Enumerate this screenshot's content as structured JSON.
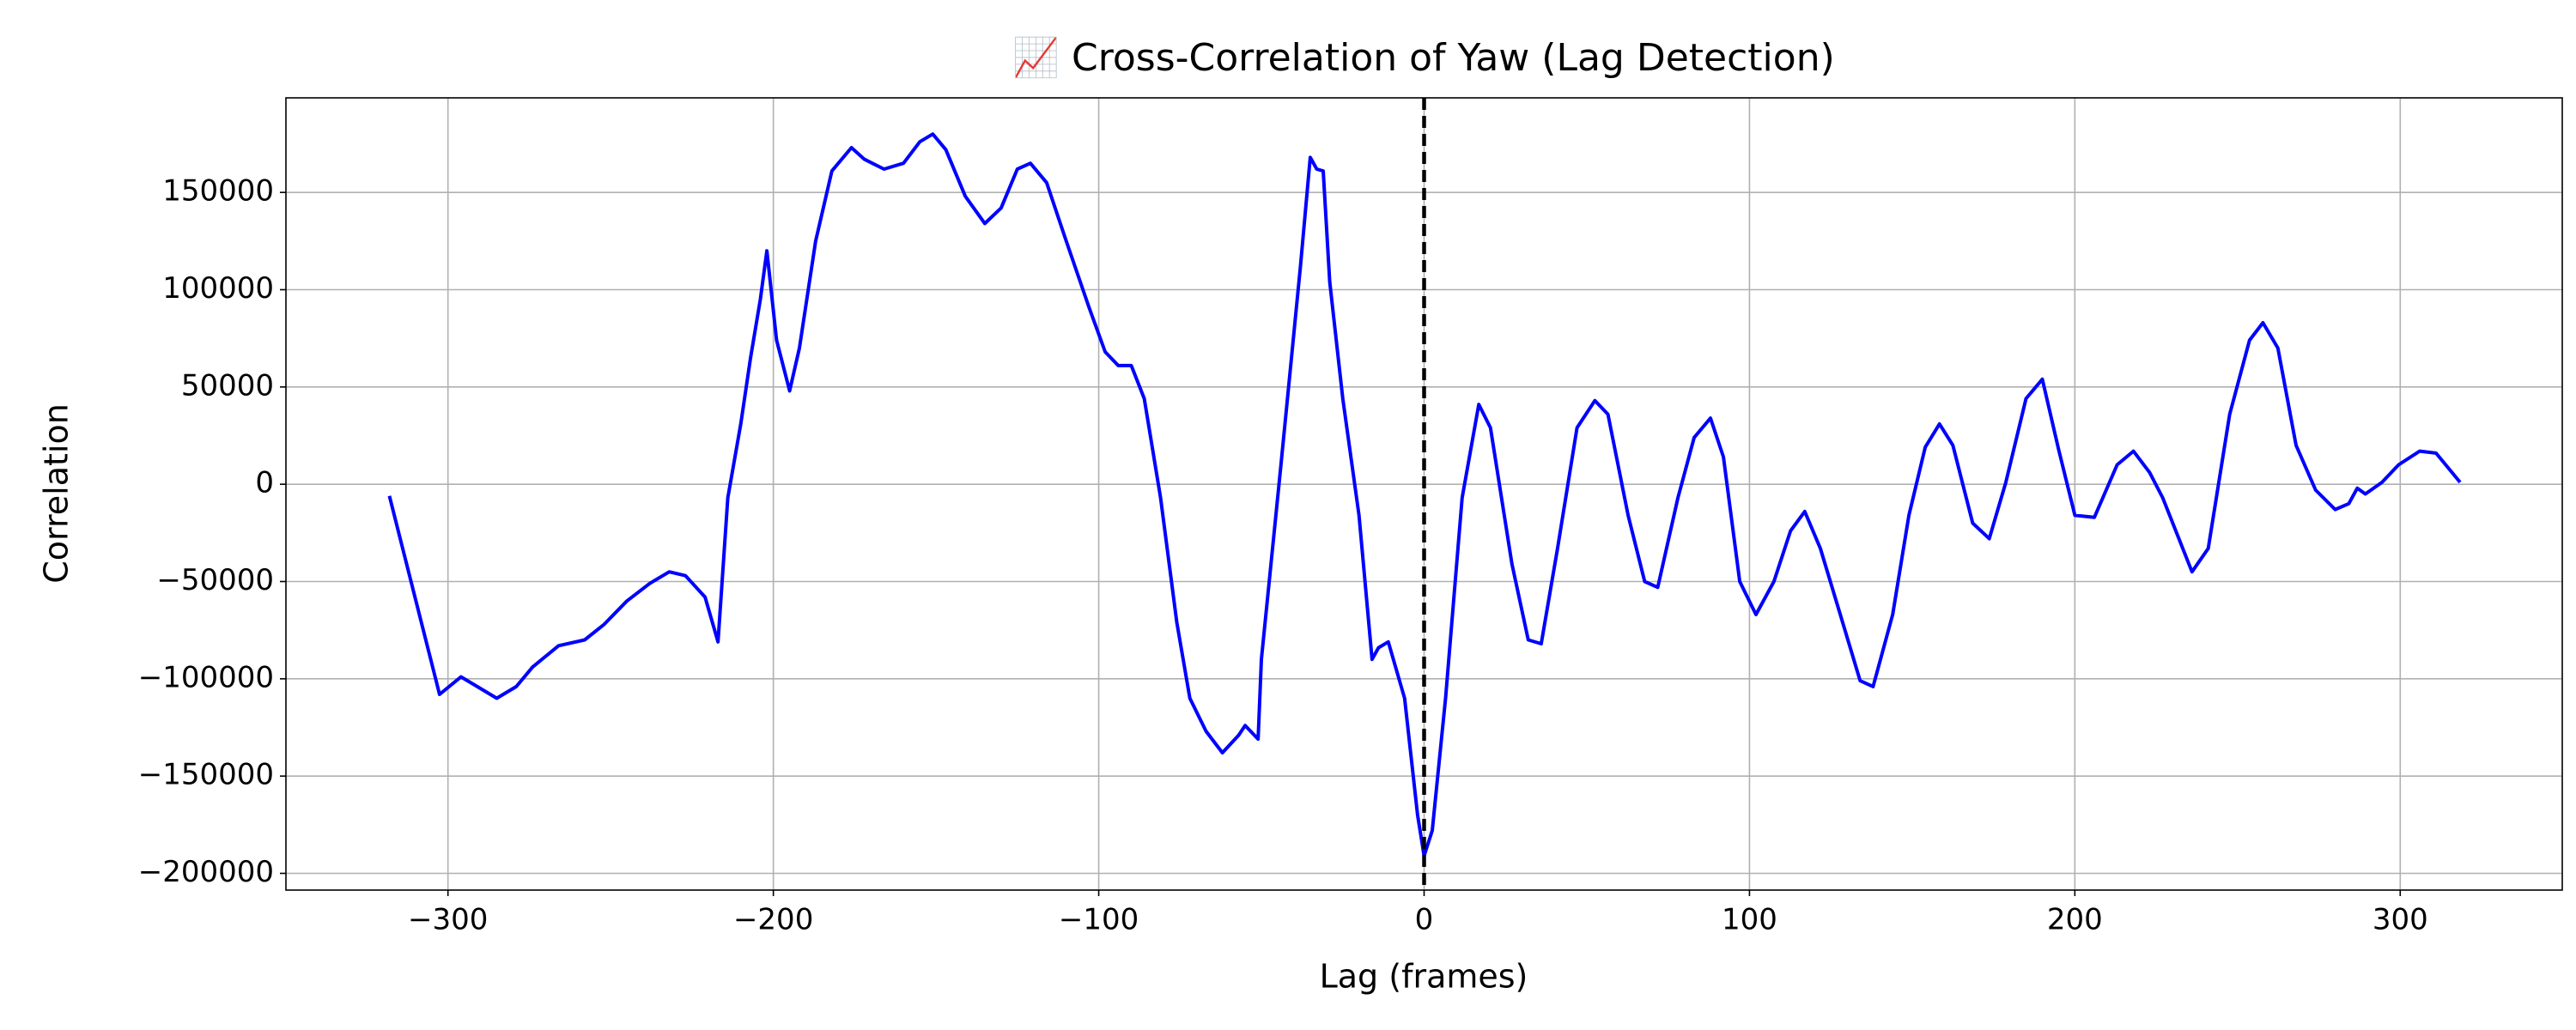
{
  "chart_data": {
    "type": "line",
    "title": "📈 Cross-Correlation of Yaw (Lag Detection)",
    "xlabel": "Lag (frames)",
    "ylabel": "Correlation",
    "x": [
      -318,
      -302.6,
      -296,
      -291,
      -285,
      -279,
      -274,
      -266,
      -258,
      -252,
      -245,
      -238,
      -232,
      -227,
      -221,
      -217,
      -214,
      -210,
      -207,
      -204,
      -202,
      -199,
      -195,
      -192,
      -187,
      -182,
      -176,
      -172,
      -166,
      -160,
      -155,
      -151,
      -147,
      -141,
      -135,
      -130,
      -125,
      -121,
      -116,
      -110,
      -103,
      -98,
      -94,
      -90,
      -86,
      -81,
      -76,
      -72,
      -67,
      -62,
      -57,
      -55,
      -51,
      -50,
      -44,
      -38,
      -35,
      -33,
      -31,
      -29,
      -25,
      -20,
      -16,
      -14,
      -11,
      -6,
      -2,
      0,
      2.5,
      6.6,
      11.7,
      16.8,
      20.4,
      27,
      32,
      36,
      41,
      47,
      52.5,
      56.5,
      62.7,
      67.8,
      71.8,
      78,
      83,
      88,
      92,
      97,
      102,
      107.5,
      112.6,
      117,
      121.8,
      127.9,
      134,
      138,
      144,
      149,
      154,
      158.4,
      162.5,
      168.6,
      173.7,
      178.8,
      185,
      190,
      195,
      200,
      206,
      213,
      218,
      223,
      227,
      236,
      241,
      247.6,
      253.7,
      257.8,
      262.4,
      268,
      274,
      280,
      284.2,
      286.8,
      289.3,
      294.4,
      299.5,
      306,
      311,
      318.4
    ],
    "series": [
      {
        "name": "Correlation",
        "color": "#0000ff",
        "values": [
          -6000,
          -108000,
          -99000,
          -104000,
          -110000,
          -104000,
          -94000,
          -83000,
          -80000,
          -72000,
          -60000,
          -51000,
          -45000,
          -47000,
          -58000,
          -81000,
          -7000,
          31000,
          65000,
          95000,
          120000,
          74000,
          48000,
          70000,
          125000,
          161000,
          173000,
          167000,
          162000,
          165000,
          176000,
          180000,
          172000,
          148000,
          134000,
          142000,
          162000,
          165000,
          155000,
          125000,
          91000,
          68000,
          61000,
          61000,
          44000,
          -7000,
          -71000,
          -110000,
          -127000,
          -138000,
          -129000,
          -124000,
          -131000,
          -90000,
          10000,
          112000,
          168000,
          162000,
          161000,
          104000,
          44000,
          -16000,
          -90000,
          -84000,
          -81000,
          -110000,
          -170000,
          -191000,
          -178000,
          -110000,
          -7000,
          41000,
          29000,
          -41000,
          -80000,
          -82000,
          -33000,
          29000,
          43000,
          36000,
          -16000,
          -50000,
          -53000,
          -7000,
          24000,
          34000,
          14000,
          -50000,
          -67000,
          -50000,
          -24000,
          -14000,
          -33000,
          -67000,
          -101000,
          -104000,
          -67000,
          -16000,
          19000,
          31000,
          20000,
          -20000,
          -28000,
          1000,
          44000,
          54000,
          18000,
          -16000,
          -17000,
          10000,
          17000,
          6000,
          -7000,
          -45000,
          -33000,
          36000,
          74000,
          83000,
          70000,
          20000,
          -3000,
          -13000,
          -10000,
          -2000,
          -5000,
          1000,
          10000,
          17000,
          16000,
          1000
        ]
      }
    ],
    "vline": {
      "value": 0,
      "color": "#000000"
    },
    "xlim": [
      -349.8,
      349.8
    ],
    "xticks": [
      {
        "value": -300,
        "label": "−300"
      },
      {
        "value": -200,
        "label": "−200"
      },
      {
        "value": -100,
        "label": "−100"
      },
      0,
      100,
      200,
      300
    ],
    "ylim": [
      -208600,
      198600
    ],
    "yticks": [
      {
        "value": -200000,
        "label": "−200000"
      },
      {
        "value": -150000,
        "label": "−150000"
      },
      {
        "value": -100000,
        "label": "−100000"
      },
      {
        "value": -50000,
        "label": "−50000"
      },
      0,
      50000,
      100000,
      150000
    ],
    "grid": true
  }
}
